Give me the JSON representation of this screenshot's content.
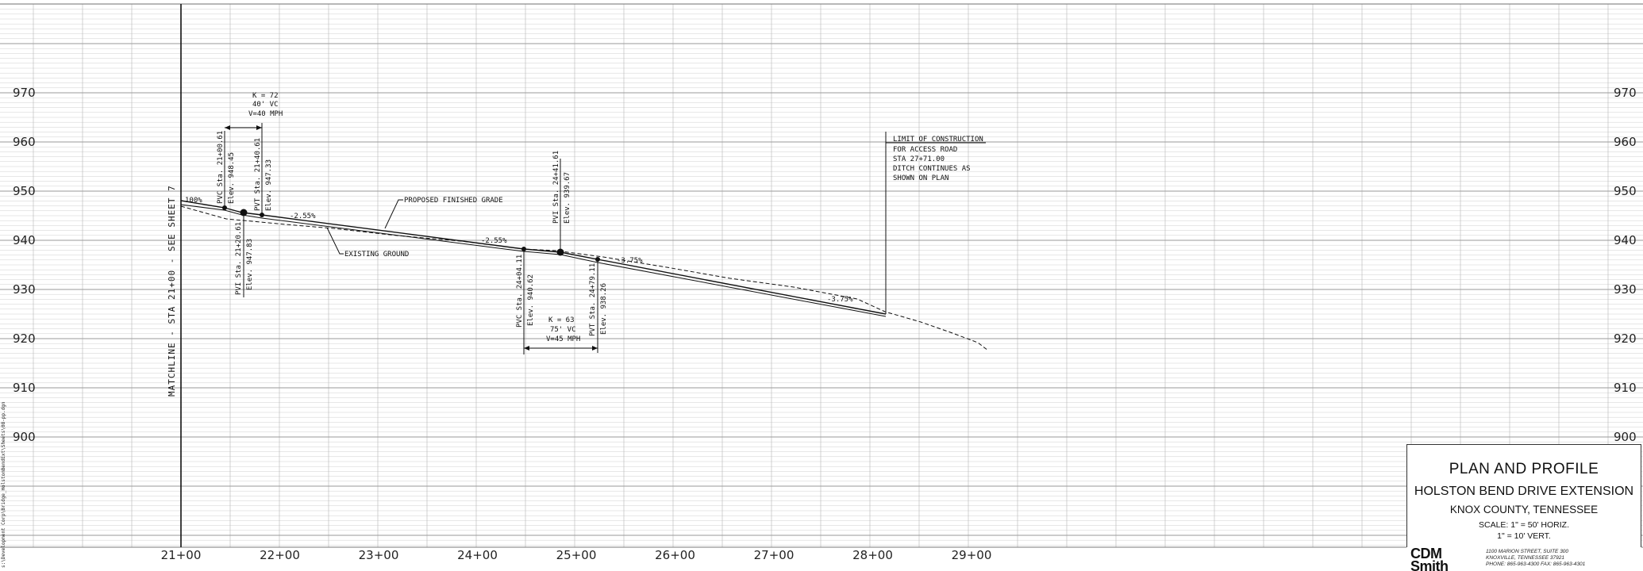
{
  "title_block": {
    "title": "PLAN AND PROFILE",
    "project": "HOLSTON BEND DRIVE EXTENSION",
    "county": "KNOX COUNTY, TENNESSEE",
    "scale_horiz": "SCALE: 1\" = 50'  HORIZ.",
    "scale_vert": "1\" = 10' VERT."
  },
  "brand": {
    "logo_line1": "CDM",
    "logo_line2": "Smith",
    "address": [
      "1100 MARION STREET, SUITE 300",
      "KNOXVILLE, TENNESSEE 37921",
      "PHONE: 865-963-4300 FAX: 865-963-4301"
    ]
  },
  "file_path": "s:\\Development Corp\\Bridge_HolstonBendExt\\Sheets\\08-pp.dgn",
  "profile": {
    "elevation_labels": [
      "970",
      "960",
      "950",
      "940",
      "930",
      "920",
      "910",
      "900"
    ],
    "station_labels": [
      "21+00",
      "22+00",
      "23+00",
      "24+00",
      "25+00",
      "26+00",
      "27+00",
      "28+00",
      "29+00"
    ],
    "matchline": "MATCHLINE - STA 21+00 - SEE SHEET 7",
    "proposed_grade": "PROPOSED FINISHED GRADE",
    "existing_ground": "EXISTING GROUND",
    "grades": [
      "100%",
      "-2.55%",
      "-2.55%",
      "-3.75%",
      "-3.75%"
    ],
    "vc1": {
      "k": "K = 72",
      "length": "40' VC",
      "speed": "V=40 MPH",
      "pvc": "PVC Sta. 21+00.61",
      "pvc_elev": "Elev. 948.45",
      "pvi": "PVI Sta. 21+20.61",
      "pvi_elev": "Elev. 947.83",
      "pvt": "PVT Sta. 21+40.61",
      "pvt_elev": "Elev. 947.33"
    },
    "vc2": {
      "k": "K = 63",
      "length": "75' VC",
      "speed": "V=45 MPH",
      "pvc": "PVC Sta. 24+04.11",
      "pvc_elev": "Elev. 940.62",
      "pvi": "PVI Sta. 24+41.61",
      "pvi_elev": "Elev. 939.67",
      "pvt": "PVT Sta. 24+79.11",
      "pvt_elev": "Elev. 938.26"
    },
    "limit_note": [
      "LIMIT OF CONSTRUCTION",
      "FOR ACCESS ROAD",
      "STA 27+71.00",
      "DITCH CONTINUES AS",
      "SHOWN ON PLAN"
    ]
  }
}
